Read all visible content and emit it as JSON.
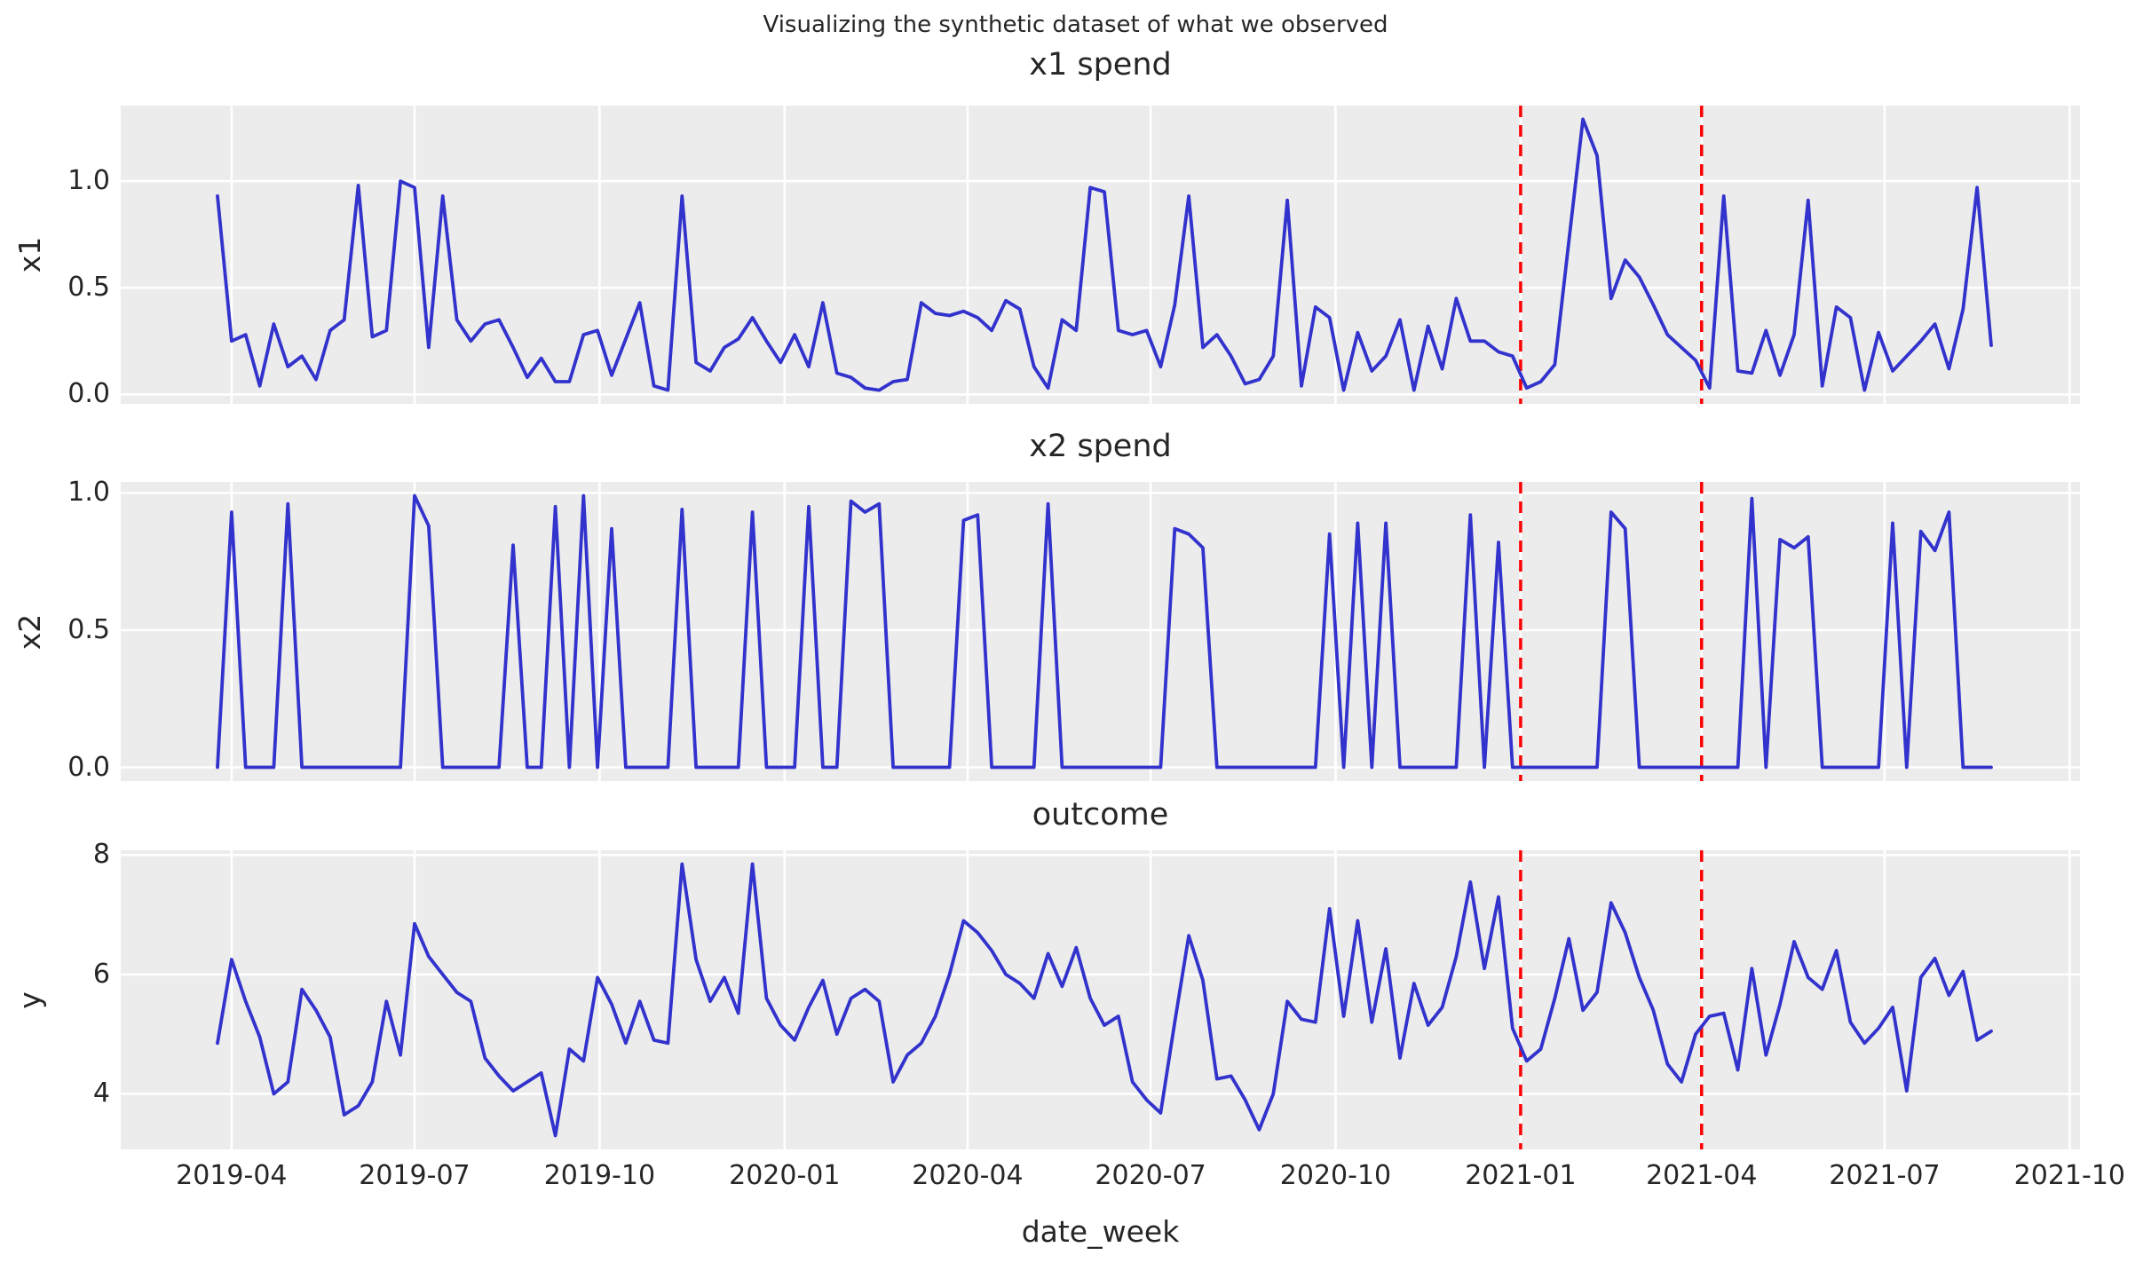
{
  "figure": {
    "suptitle": "Visualizing the synthetic dataset of what we observed",
    "colors": {
      "background": "#ffffff",
      "axes_background": "#ececec",
      "grid": "#ffffff",
      "line": "#3232cd",
      "event_line": "#ff0000",
      "text": "#262626"
    }
  },
  "chart_data": {
    "type": "line",
    "title": "Visualizing the synthetic dataset of what we observed",
    "xlabel": "date_week",
    "legend": "none",
    "grid": true,
    "x_ticks": [
      "2019-04",
      "2019-07",
      "2019-10",
      "2020-01",
      "2020-04",
      "2020-07",
      "2020-10",
      "2021-01",
      "2021-04",
      "2021-07",
      "2021-10"
    ],
    "event_dates": [
      "2021-01-01",
      "2021-04-01"
    ],
    "x": [
      "2019-03-25",
      "2019-04-01",
      "2019-04-08",
      "2019-04-15",
      "2019-04-22",
      "2019-04-29",
      "2019-05-06",
      "2019-05-13",
      "2019-05-20",
      "2019-05-27",
      "2019-06-03",
      "2019-06-10",
      "2019-06-17",
      "2019-06-24",
      "2019-07-01",
      "2019-07-08",
      "2019-07-15",
      "2019-07-22",
      "2019-07-29",
      "2019-08-05",
      "2019-08-12",
      "2019-08-19",
      "2019-08-26",
      "2019-09-02",
      "2019-09-09",
      "2019-09-16",
      "2019-09-23",
      "2019-09-30",
      "2019-10-07",
      "2019-10-14",
      "2019-10-21",
      "2019-10-28",
      "2019-11-04",
      "2019-11-11",
      "2019-11-18",
      "2019-11-25",
      "2019-12-02",
      "2019-12-09",
      "2019-12-16",
      "2019-12-23",
      "2019-12-30",
      "2020-01-06",
      "2020-01-13",
      "2020-01-20",
      "2020-01-27",
      "2020-02-03",
      "2020-02-10",
      "2020-02-17",
      "2020-02-24",
      "2020-03-02",
      "2020-03-09",
      "2020-03-16",
      "2020-03-23",
      "2020-03-30",
      "2020-04-06",
      "2020-04-13",
      "2020-04-20",
      "2020-04-27",
      "2020-05-04",
      "2020-05-11",
      "2020-05-18",
      "2020-05-25",
      "2020-06-01",
      "2020-06-08",
      "2020-06-15",
      "2020-06-22",
      "2020-06-29",
      "2020-07-06",
      "2020-07-13",
      "2020-07-20",
      "2020-07-27",
      "2020-08-03",
      "2020-08-10",
      "2020-08-17",
      "2020-08-24",
      "2020-08-31",
      "2020-09-07",
      "2020-09-14",
      "2020-09-21",
      "2020-09-28",
      "2020-10-05",
      "2020-10-12",
      "2020-10-19",
      "2020-10-26",
      "2020-11-02",
      "2020-11-09",
      "2020-11-16",
      "2020-11-23",
      "2020-11-30",
      "2020-12-07",
      "2020-12-14",
      "2020-12-21",
      "2020-12-28",
      "2021-01-04",
      "2021-01-11",
      "2021-01-18",
      "2021-01-25",
      "2021-02-01",
      "2021-02-08",
      "2021-02-15",
      "2021-02-22",
      "2021-03-01",
      "2021-03-08",
      "2021-03-15",
      "2021-03-22",
      "2021-03-29",
      "2021-04-05",
      "2021-04-12",
      "2021-04-19",
      "2021-04-26",
      "2021-05-03",
      "2021-05-10",
      "2021-05-17",
      "2021-05-24",
      "2021-05-31",
      "2021-06-07",
      "2021-06-14",
      "2021-06-21",
      "2021-06-28",
      "2021-07-05",
      "2021-07-12",
      "2021-07-19",
      "2021-07-26",
      "2021-08-02",
      "2021-08-09",
      "2021-08-16",
      "2021-08-23"
    ],
    "subplots": [
      {
        "title": "x1 spend",
        "ylabel": "x1",
        "yticks": [
          0.0,
          0.5,
          1.0
        ],
        "ytick_labels": [
          "0.0",
          "0.5",
          "1.0"
        ],
        "ylim": [
          -0.044,
          1.354
        ],
        "values": [
          0.93,
          0.25,
          0.28,
          0.04,
          0.33,
          0.13,
          0.18,
          0.07,
          0.3,
          0.35,
          0.98,
          0.27,
          0.3,
          1.0,
          0.97,
          0.22,
          0.93,
          0.35,
          0.25,
          0.33,
          0.35,
          0.22,
          0.08,
          0.17,
          0.06,
          0.06,
          0.28,
          0.3,
          0.09,
          0.26,
          0.43,
          0.04,
          0.02,
          0.93,
          0.15,
          0.11,
          0.22,
          0.26,
          0.36,
          0.25,
          0.15,
          0.28,
          0.13,
          0.43,
          0.1,
          0.08,
          0.03,
          0.02,
          0.06,
          0.07,
          0.43,
          0.38,
          0.37,
          0.39,
          0.36,
          0.3,
          0.44,
          0.4,
          0.13,
          0.03,
          0.35,
          0.3,
          0.97,
          0.95,
          0.3,
          0.28,
          0.3,
          0.13,
          0.42,
          0.93,
          0.22,
          0.28,
          0.18,
          0.05,
          0.07,
          0.18,
          0.91,
          0.04,
          0.41,
          0.36,
          0.02,
          0.29,
          0.11,
          0.18,
          0.35,
          0.02,
          0.32,
          0.12,
          0.45,
          0.25,
          0.25,
          0.2,
          0.18,
          0.03,
          0.06,
          0.14,
          0.72,
          1.29,
          1.12,
          0.45,
          0.63,
          0.55,
          0.42,
          0.28,
          0.22,
          0.16,
          0.03,
          0.93,
          0.11,
          0.1,
          0.3,
          0.09,
          0.28,
          0.91,
          0.04,
          0.41,
          0.36,
          0.02,
          0.29,
          0.11,
          0.18,
          0.25,
          0.33,
          0.12,
          0.4,
          0.97,
          0.23
        ]
      },
      {
        "title": "x2 spend",
        "ylabel": "x2",
        "yticks": [
          0.0,
          0.5,
          1.0
        ],
        "ytick_labels": [
          "0.0",
          "0.5",
          "1.0"
        ],
        "ylim": [
          -0.05,
          1.04
        ],
        "values": [
          0,
          0.93,
          0,
          0,
          0,
          0.96,
          0,
          0,
          0,
          0,
          0,
          0,
          0,
          0,
          0.99,
          0.88,
          0,
          0,
          0,
          0,
          0,
          0.81,
          0,
          0,
          0.95,
          0,
          0.99,
          0,
          0.87,
          0,
          0,
          0,
          0,
          0.94,
          0,
          0,
          0,
          0,
          0.93,
          0,
          0,
          0,
          0.95,
          0,
          0,
          0.97,
          0.93,
          0.96,
          0,
          0,
          0,
          0,
          0,
          0.9,
          0.92,
          0,
          0,
          0,
          0,
          0.96,
          0,
          0,
          0,
          0,
          0,
          0,
          0,
          0,
          0.87,
          0.85,
          0.8,
          0,
          0,
          0,
          0,
          0,
          0,
          0,
          0,
          0.85,
          0,
          0.89,
          0,
          0.89,
          0,
          0,
          0,
          0,
          0,
          0.92,
          0,
          0.82,
          0,
          0,
          0,
          0,
          0,
          0,
          0,
          0.93,
          0.87,
          0,
          0,
          0,
          0,
          0,
          0,
          0,
          0,
          0.98,
          0,
          0.83,
          0.8,
          0.84,
          0,
          0,
          0,
          0,
          0,
          0.89,
          0,
          0.86,
          0.79,
          0.93,
          0,
          0,
          0
        ]
      },
      {
        "title": "outcome",
        "ylabel": "y",
        "yticks": [
          4,
          6,
          8
        ],
        "ytick_labels": [
          "4",
          "6",
          "8"
        ],
        "ylim": [
          3.07,
          8.08
        ],
        "values": [
          4.85,
          6.25,
          5.55,
          4.95,
          4.0,
          4.2,
          5.75,
          5.4,
          4.95,
          3.65,
          3.8,
          4.2,
          5.55,
          4.65,
          6.85,
          6.3,
          6.0,
          5.7,
          5.55,
          4.6,
          4.3,
          4.05,
          4.2,
          4.35,
          3.3,
          4.75,
          4.55,
          5.95,
          5.5,
          4.85,
          5.55,
          4.9,
          4.85,
          7.85,
          6.25,
          5.55,
          5.95,
          5.35,
          7.85,
          5.6,
          5.15,
          4.9,
          5.45,
          5.9,
          5.0,
          5.6,
          5.75,
          5.55,
          4.2,
          4.65,
          4.85,
          5.3,
          6.0,
          6.9,
          6.7,
          6.4,
          6.0,
          5.85,
          5.6,
          6.35,
          5.8,
          6.45,
          5.6,
          5.15,
          5.3,
          4.2,
          3.9,
          3.68,
          5.2,
          6.65,
          5.9,
          4.25,
          4.3,
          3.9,
          3.4,
          4.0,
          5.55,
          5.25,
          5.2,
          7.1,
          5.3,
          6.9,
          5.2,
          6.43,
          4.6,
          5.85,
          5.15,
          5.45,
          6.3,
          7.55,
          6.1,
          7.3,
          5.1,
          4.55,
          4.75,
          5.6,
          6.6,
          5.4,
          5.7,
          7.2,
          6.7,
          5.95,
          5.4,
          4.5,
          4.2,
          5.0,
          5.3,
          5.35,
          4.4,
          6.1,
          4.65,
          5.5,
          6.55,
          5.95,
          5.75,
          6.4,
          5.2,
          4.85,
          5.1,
          5.45,
          4.05,
          5.95,
          6.27,
          5.65,
          6.05,
          4.9,
          5.05
        ]
      }
    ]
  }
}
